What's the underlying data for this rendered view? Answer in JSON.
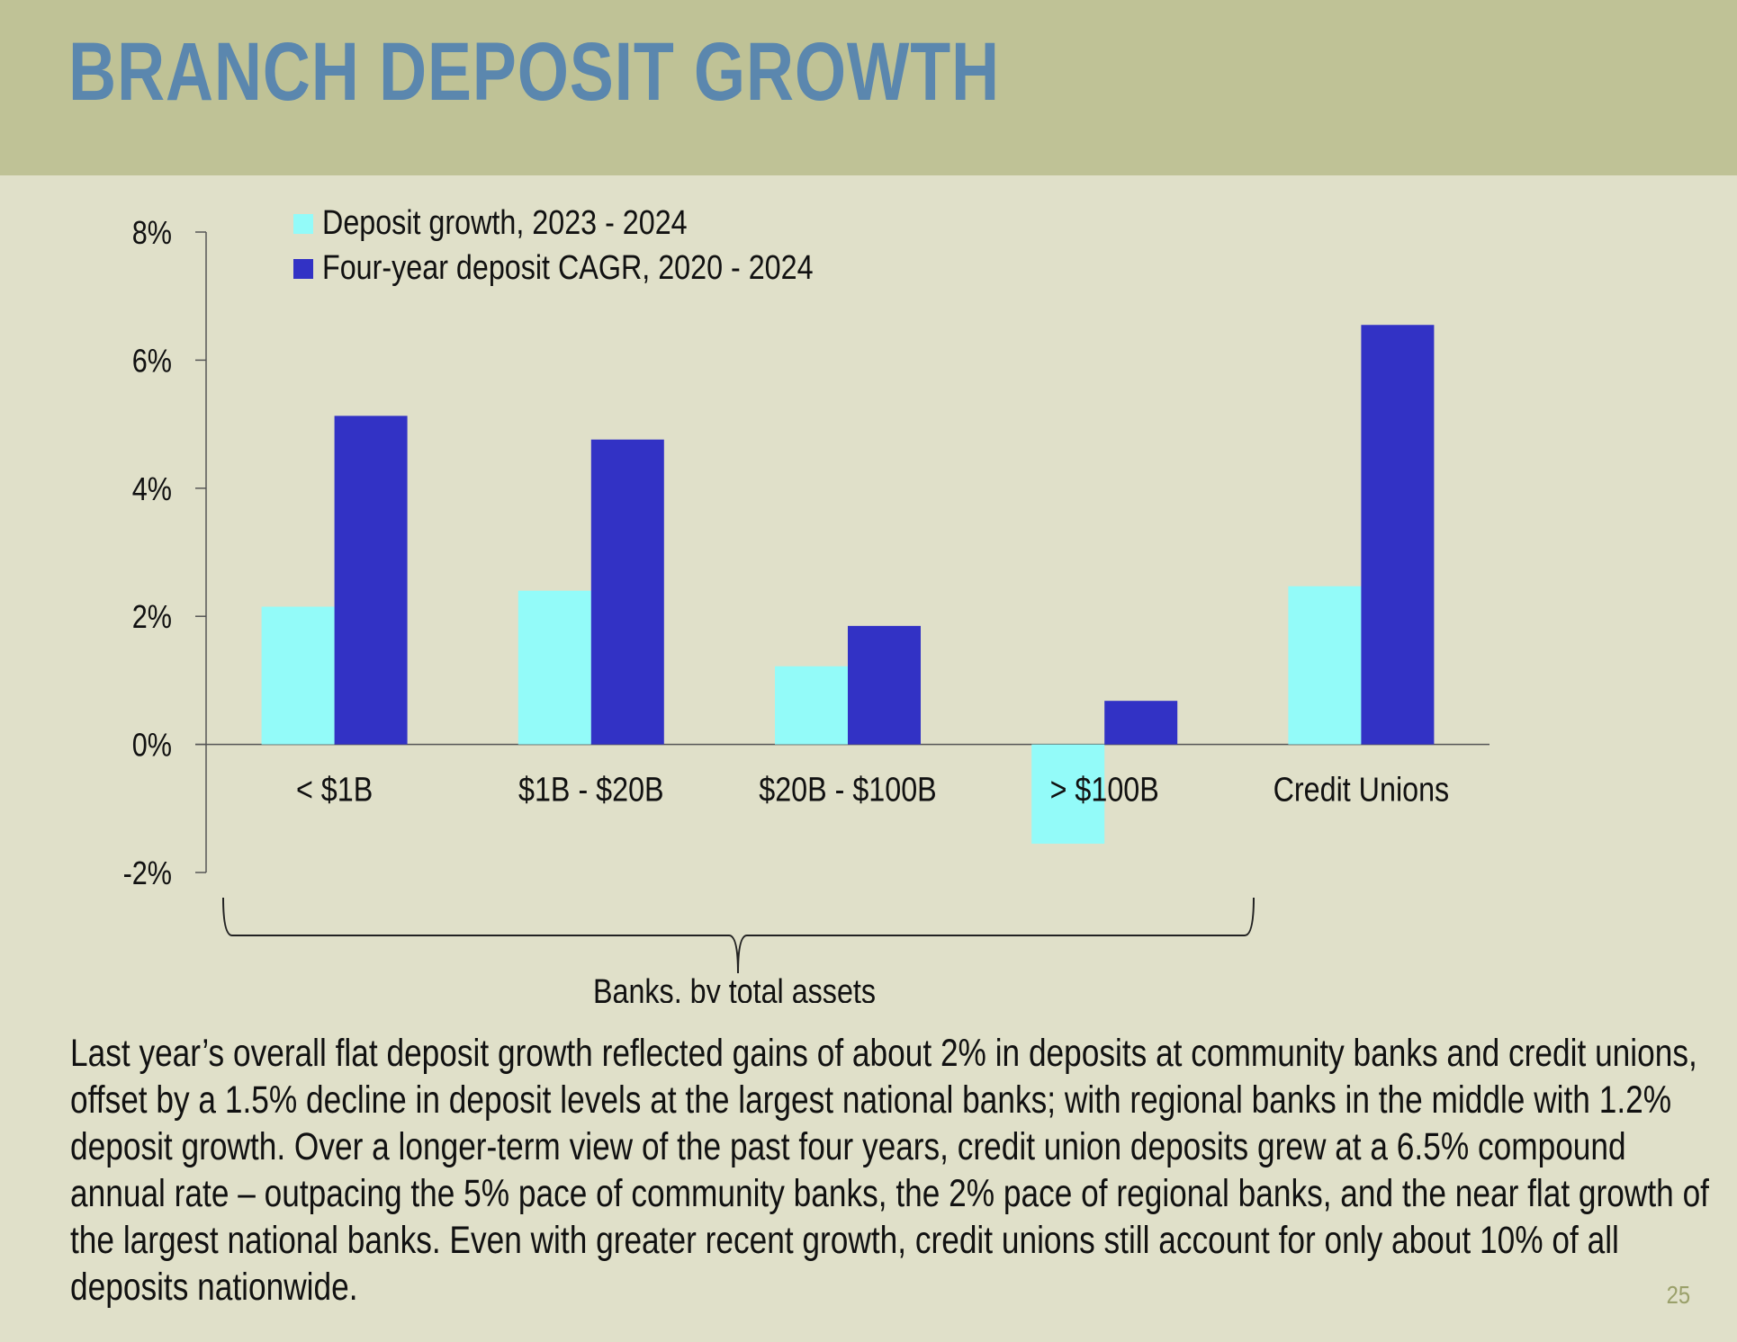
{
  "slide": {
    "title": "BRANCH DEPOSIT GROWTH",
    "page_number": "25",
    "paragraph": "Last year’s overall flat deposit growth reflected gains of about 2% in deposits at community banks and credit unions, offset by a 1.5% decline in deposit levels at the largest national banks; with regional banks in the middle with 1.2% deposit growth.  Over a longer-term view of the past four years, credit union deposits grew at a 6.5% compound annual rate – outpacing the 5% pace of community banks, the 2% pace of regional banks, and the near flat growth of the largest national banks.  Even with greater recent growth, credit unions still account for only about 10% of all deposits nationwide."
  },
  "colors": {
    "header_band": "#bfc296",
    "background": "#e0e0c9",
    "title": "#5b87ae",
    "series_1": "#93fbf9",
    "series_2": "#3232c5"
  },
  "chart_data": {
    "type": "bar",
    "categories": [
      "< $1B",
      "$1B - $20B",
      "$20B - $100B",
      "> $100B",
      "Credit Unions"
    ],
    "series": [
      {
        "name": "Deposit growth, 2023 - 2024",
        "values": [
          2.15,
          2.4,
          1.22,
          -1.55,
          2.47
        ]
      },
      {
        "name": "Four-year deposit CAGR, 2020 - 2024",
        "values": [
          5.13,
          4.76,
          1.85,
          0.68,
          6.55
        ]
      }
    ],
    "ylim": [
      -2,
      8
    ],
    "yticks": [
      -2,
      0,
      2,
      4,
      6,
      8
    ],
    "ytick_labels": [
      "-2%",
      "0%",
      "2%",
      "4%",
      "6%",
      "8%"
    ],
    "legend_position": "top-left",
    "grid": false,
    "bracket_label": "Banks, by total assets"
  }
}
